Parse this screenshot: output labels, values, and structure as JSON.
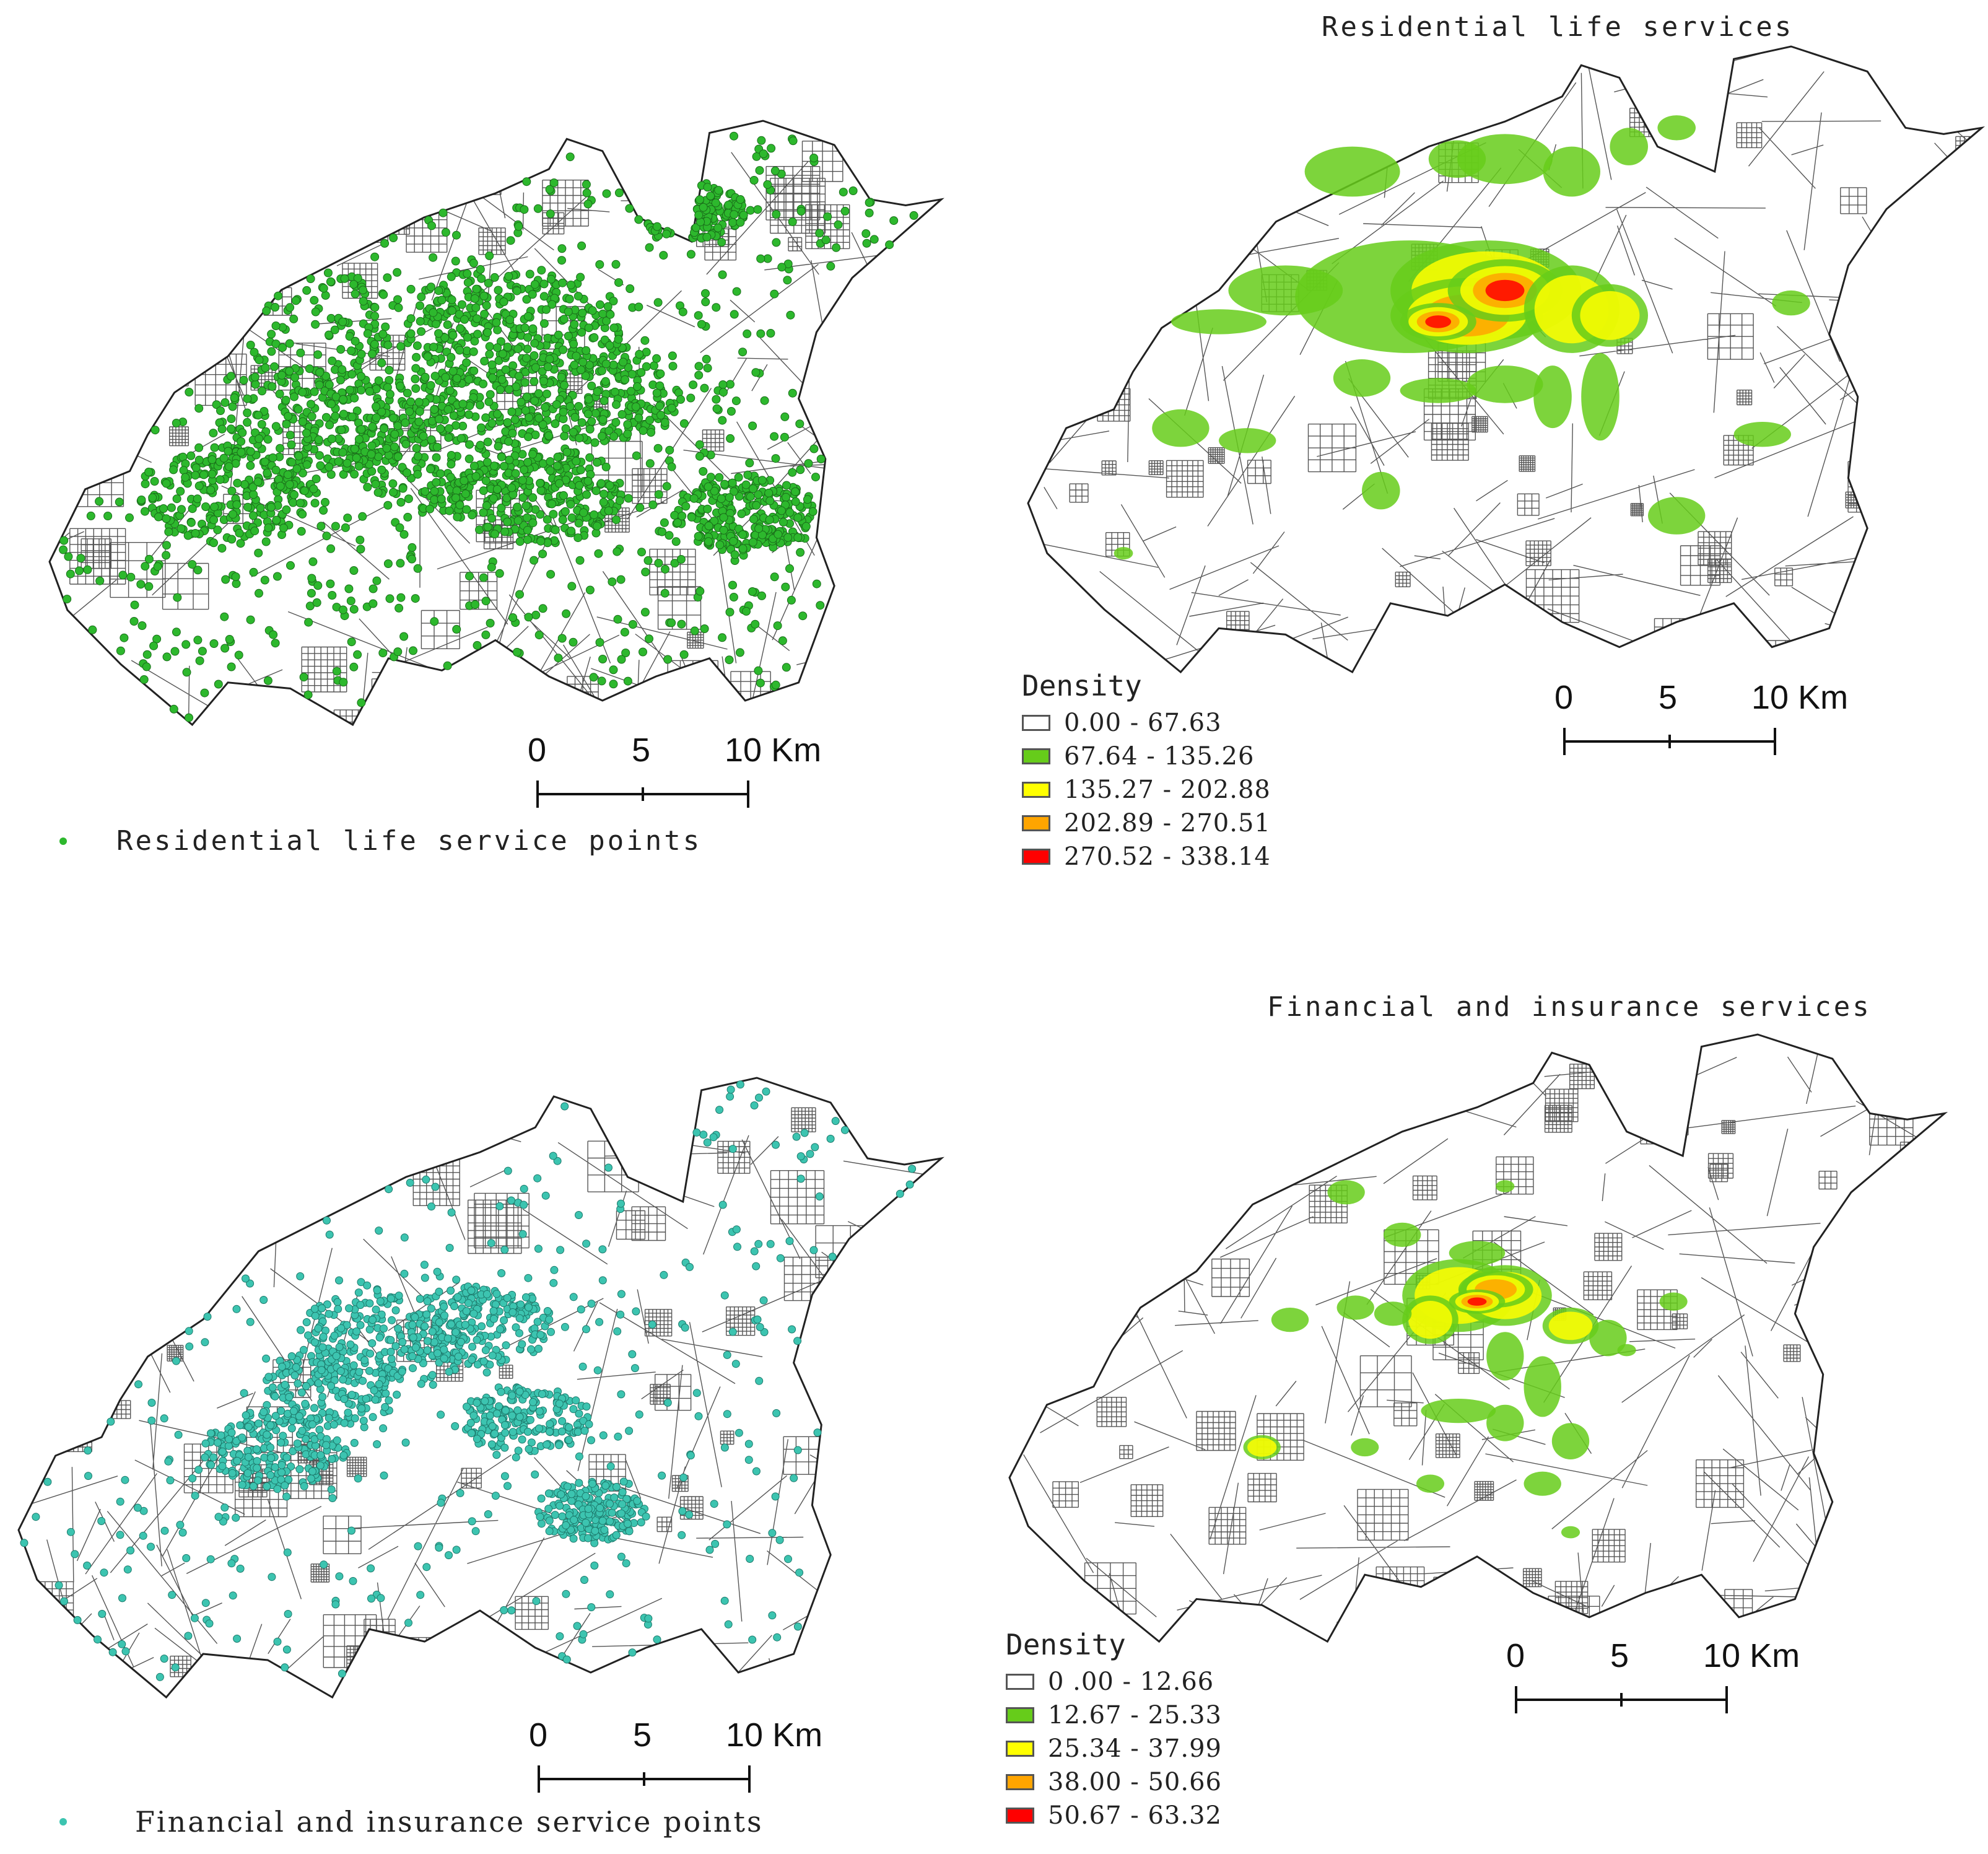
{
  "panels": {
    "residential_points": {
      "point_color": "#2db82d",
      "point_stroke": "#1a6e1a",
      "legend_label": "Residential life service points",
      "scale": {
        "labels": [
          "0",
          "5",
          "10 Km"
        ]
      }
    },
    "residential_density": {
      "title": "Residential life services",
      "legend_title": "Density",
      "classes": [
        {
          "label": "0.00 - 67.63",
          "color": "#ffffff"
        },
        {
          "label": "67.64 - 135.26",
          "color": "#66cc1a"
        },
        {
          "label": "135.27 - 202.88",
          "color": "#ffff00"
        },
        {
          "label": "202.89 - 270.51",
          "color": "#ffa500"
        },
        {
          "label": "270.52 - 338.14",
          "color": "#ff0000"
        }
      ],
      "scale": {
        "labels": [
          "0",
          "5",
          "10 Km"
        ]
      }
    },
    "financial_points": {
      "point_color": "#3cc4b0",
      "point_stroke": "#1d7a6c",
      "legend_label": "Financial and insurance service points",
      "scale": {
        "labels": [
          "0",
          "5",
          "10 Km"
        ]
      }
    },
    "financial_density": {
      "title": "Financial and insurance services",
      "legend_title": "Density",
      "classes": [
        {
          "label": "0 .00 - 12.66",
          "color": "#ffffff"
        },
        {
          "label": "12.67 - 25.33",
          "color": "#66cc1a"
        },
        {
          "label": "25.34 - 37.99",
          "color": "#ffff00"
        },
        {
          "label": "38.00 - 50.66",
          "color": "#ffa500"
        },
        {
          "label": "50.67 - 63.32",
          "color": "#ff0000"
        }
      ],
      "scale": {
        "labels": [
          "0",
          "5",
          "10 Km"
        ]
      }
    }
  }
}
